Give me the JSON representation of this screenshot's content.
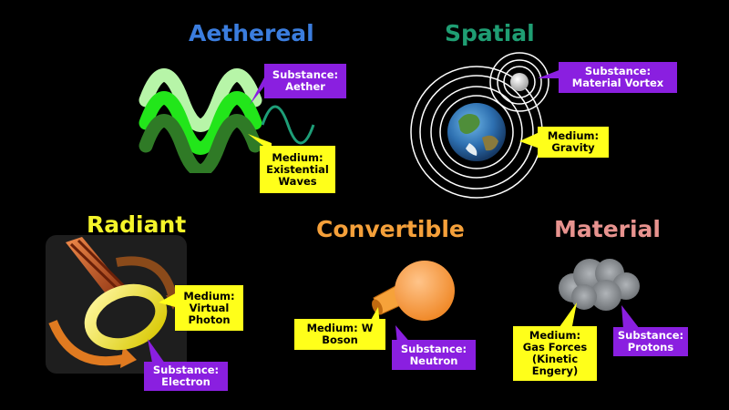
{
  "sections": {
    "aethereal": {
      "title": "Aethereal",
      "substance": "Substance:\nAether",
      "medium": "Medium:\nExistential\nWaves"
    },
    "spatial": {
      "title": "Spatial",
      "substance": "Substance:\nMaterial Vortex",
      "medium": "Medium:\nGravity"
    },
    "radiant": {
      "title": "Radiant",
      "medium": "Medium:\nVirtual\nPhoton",
      "substance": "Substance:\nElectron"
    },
    "convertible": {
      "title": "Convertible",
      "medium": "Medium: W\nBoson",
      "substance": "Substance:\nNeutron"
    },
    "material": {
      "title": "Material",
      "medium": "Medium:\nGas Forces\n(Kinetic\nEngery)",
      "substance": "Substance:\nProtons"
    }
  },
  "colors": {
    "aethereal": "#3b7dde",
    "spatial": "#1f9e73",
    "radiant": "#f5f52a",
    "convertible": "#f5a03a",
    "material": "#e8938f",
    "substance_box": "#8a1fe0",
    "medium_box": "#ffff1a"
  },
  "icons": {
    "aethereal": "wave-icon",
    "spatial": "planet-orbit-icon",
    "radiant": "drill-ring-icon",
    "convertible": "sphere-tube-icon",
    "material": "gas-cloud-icon"
  }
}
